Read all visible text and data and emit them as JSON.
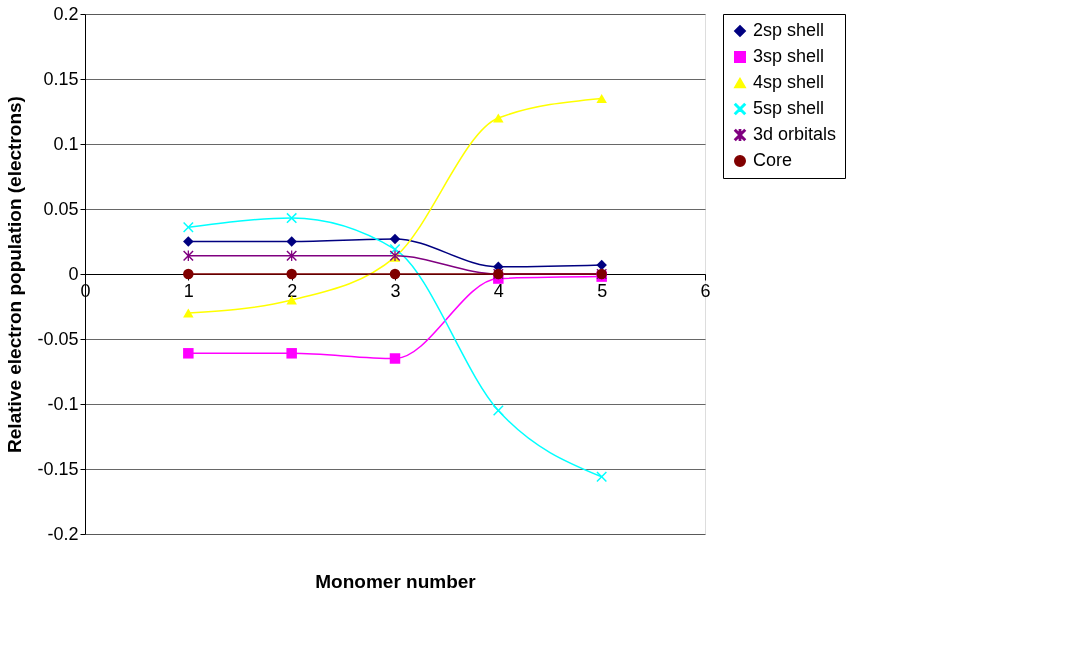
{
  "chart_data": {
    "type": "line",
    "xlabel": "Monomer number",
    "ylabel": "Relative electron population (electrons)",
    "x": [
      1,
      2,
      3,
      4,
      5
    ],
    "series": [
      {
        "name": "2sp shell",
        "color": "#000080",
        "marker": "diamond",
        "values": [
          0.025,
          0.025,
          0.027,
          0.0055,
          0.007
        ]
      },
      {
        "name": "3sp shell",
        "color": "#ff00ff",
        "marker": "square",
        "values": [
          -0.061,
          -0.061,
          -0.065,
          -0.0035,
          -0.002
        ]
      },
      {
        "name": "4sp shell",
        "color": "#ffff00",
        "marker": "triangle",
        "values": [
          -0.03,
          -0.02,
          0.013,
          0.12,
          0.135
        ]
      },
      {
        "name": "5sp shell",
        "color": "#00ffff",
        "marker": "cross",
        "values": [
          0.036,
          0.043,
          0.019,
          -0.105,
          -0.156
        ]
      },
      {
        "name": "3d orbitals",
        "color": "#800080",
        "marker": "star",
        "values": [
          0.014,
          0.014,
          0.014,
          0.0,
          0.0
        ]
      },
      {
        "name": "Core",
        "color": "#800000",
        "marker": "circle",
        "values": [
          0,
          0,
          0,
          0,
          0
        ]
      }
    ],
    "xlim": [
      0,
      6
    ],
    "xticks": [
      0,
      1,
      2,
      3,
      4,
      5,
      6
    ],
    "ylim": [
      -0.2,
      0.2
    ],
    "yticks": [
      -0.2,
      -0.15,
      -0.1,
      -0.05,
      0,
      0.05,
      0.1,
      0.15,
      0.2
    ],
    "grid": "y",
    "legend": "right",
    "line_style": "solid"
  }
}
